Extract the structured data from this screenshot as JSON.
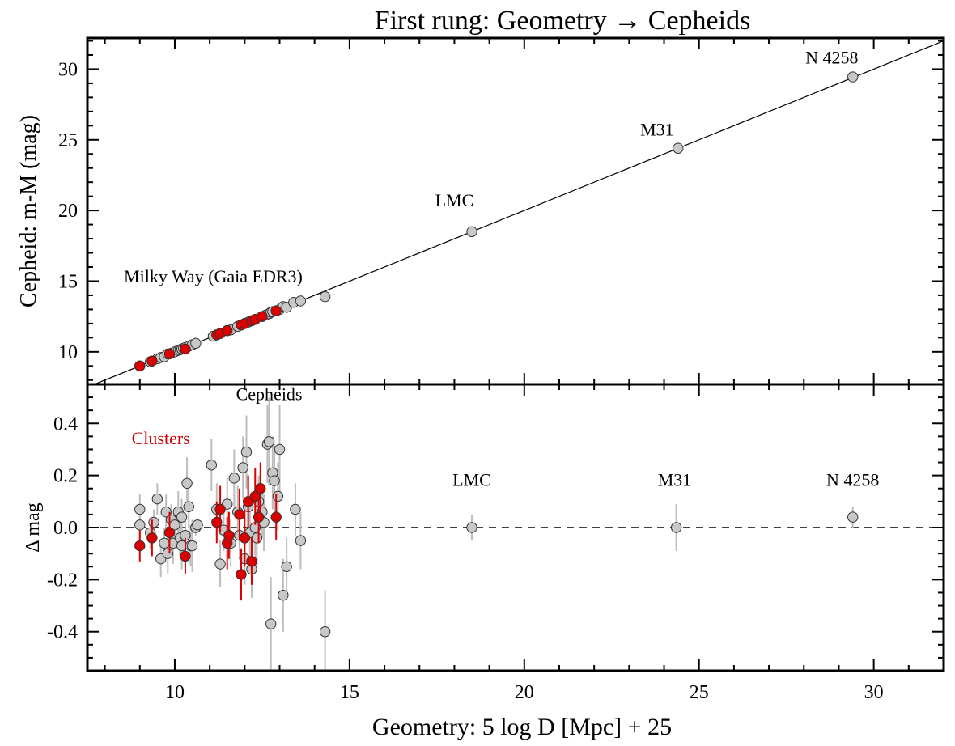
{
  "title": "First rung: Geometry → Cepheids",
  "xlabel": "Geometry: 5 log D [Mpc] + 25",
  "colors": {
    "cepheid_fill": "#c8c8c8",
    "cluster_fill": "#dd0000",
    "errorbar_grey": "#bdbdbd",
    "errorbar_red": "#dd0000",
    "cluster_label": "#cc0000"
  },
  "chart_data": [
    {
      "type": "scatter",
      "panel": "top",
      "title": "First rung: Geometry → Cepheids",
      "xlabel": "",
      "ylabel": "Cepheid: m-M (mag)",
      "xlim": [
        7.5,
        32
      ],
      "ylim": [
        7.7,
        32.2
      ],
      "xticks": [
        10,
        15,
        20,
        25,
        30
      ],
      "yticks": [
        10,
        15,
        20,
        25,
        30
      ],
      "line": {
        "style": "solid",
        "points": [
          [
            7.5,
            7.5
          ],
          [
            32,
            32
          ]
        ]
      },
      "annotations": [
        {
          "text": "Milky Way (Gaia EDR3)",
          "x": 11.1,
          "y": 14.9
        },
        {
          "text": "LMC",
          "x": 18.0,
          "y": 20.3
        },
        {
          "text": "M31",
          "x": 23.8,
          "y": 25.3
        },
        {
          "text": "N 4258",
          "x": 28.8,
          "y": 30.4
        }
      ],
      "series": [
        {
          "name": "Cepheids",
          "points": [
            [
              9.0,
              9.0
            ],
            [
              9.3,
              9.3
            ],
            [
              9.5,
              9.5
            ],
            [
              9.6,
              9.6
            ],
            [
              9.7,
              9.65
            ],
            [
              9.8,
              9.85
            ],
            [
              9.9,
              9.9
            ],
            [
              10.0,
              10.0
            ],
            [
              10.1,
              10.1
            ],
            [
              10.15,
              10.15
            ],
            [
              10.2,
              10.2
            ],
            [
              10.25,
              10.25
            ],
            [
              10.3,
              10.3
            ],
            [
              10.4,
              10.4
            ],
            [
              10.5,
              10.5
            ],
            [
              10.6,
              10.6
            ],
            [
              11.1,
              11.1
            ],
            [
              11.3,
              11.3
            ],
            [
              11.5,
              11.5
            ],
            [
              11.6,
              11.55
            ],
            [
              11.8,
              11.8
            ],
            [
              11.9,
              11.9
            ],
            [
              12.0,
              12.0
            ],
            [
              12.1,
              12.1
            ],
            [
              12.2,
              12.2
            ],
            [
              12.3,
              12.3
            ],
            [
              12.5,
              12.5
            ],
            [
              12.6,
              12.6
            ],
            [
              12.7,
              12.7
            ],
            [
              12.75,
              12.8
            ],
            [
              12.8,
              12.85
            ],
            [
              12.9,
              12.9
            ],
            [
              13.0,
              13.0
            ],
            [
              13.1,
              13.2
            ],
            [
              13.2,
              13.15
            ],
            [
              13.4,
              13.5
            ],
            [
              13.6,
              13.6
            ],
            [
              14.3,
              13.9
            ],
            [
              18.5,
              18.5
            ],
            [
              24.4,
              24.4
            ],
            [
              29.4,
              29.45
            ]
          ]
        },
        {
          "name": "Clusters",
          "points": [
            [
              9.0,
              9.0
            ],
            [
              9.35,
              9.35
            ],
            [
              9.85,
              9.85
            ],
            [
              10.3,
              10.2
            ],
            [
              11.2,
              11.2
            ],
            [
              11.3,
              11.3
            ],
            [
              11.5,
              11.5
            ],
            [
              11.9,
              11.9
            ],
            [
              12.0,
              12.0
            ],
            [
              12.2,
              12.2
            ],
            [
              12.3,
              12.3
            ],
            [
              12.5,
              12.5
            ],
            [
              12.9,
              12.9
            ]
          ]
        }
      ]
    },
    {
      "type": "scatter",
      "panel": "bottom",
      "xlabel": "Geometry: 5 log D [Mpc] + 25",
      "ylabel": "Δ mag",
      "xlim": [
        7.5,
        32
      ],
      "ylim": [
        -0.55,
        0.55
      ],
      "xticks": [
        10,
        15,
        20,
        25,
        30
      ],
      "yticks": [
        -0.4,
        -0.2,
        0.0,
        0.2,
        0.4
      ],
      "ytick_labels": [
        "-0.4",
        "-0.2",
        "0.0",
        "0.2",
        "0.4"
      ],
      "xtick_labels": [
        "10",
        "15",
        "20",
        "25",
        "30"
      ],
      "reference_line": {
        "y": 0.0,
        "style": "dashed"
      },
      "annotations": [
        {
          "text": "Cepheids",
          "x": 12.7,
          "y": 0.49,
          "color": "black"
        },
        {
          "text": "Clusters",
          "x": 9.6,
          "y": 0.32,
          "color": "red"
        },
        {
          "text": "LMC",
          "x": 18.5,
          "y": 0.16,
          "color": "black"
        },
        {
          "text": "M31",
          "x": 24.3,
          "y": 0.16,
          "color": "black"
        },
        {
          "text": "N 4258",
          "x": 29.4,
          "y": 0.16,
          "color": "black"
        }
      ],
      "series": [
        {
          "name": "Cepheids",
          "points": [
            {
              "x": 9.0,
              "y": 0.07,
              "err": 0.06
            },
            {
              "x": 9.0,
              "y": 0.01,
              "err": 0.05
            },
            {
              "x": 9.3,
              "y": -0.02,
              "err": 0.06
            },
            {
              "x": 9.4,
              "y": 0.02,
              "err": 0.05
            },
            {
              "x": 9.5,
              "y": 0.11,
              "err": 0.06
            },
            {
              "x": 9.6,
              "y": -0.12,
              "err": 0.07
            },
            {
              "x": 9.7,
              "y": -0.06,
              "err": 0.06
            },
            {
              "x": 9.75,
              "y": 0.06,
              "err": 0.07
            },
            {
              "x": 9.8,
              "y": -0.1,
              "err": 0.08
            },
            {
              "x": 9.9,
              "y": 0.03,
              "err": 0.06
            },
            {
              "x": 9.95,
              "y": -0.06,
              "err": 0.08
            },
            {
              "x": 10.0,
              "y": 0.01,
              "err": 0.06
            },
            {
              "x": 10.1,
              "y": 0.06,
              "err": 0.08
            },
            {
              "x": 10.15,
              "y": -0.04,
              "err": 0.07
            },
            {
              "x": 10.2,
              "y": 0.04,
              "err": 0.07
            },
            {
              "x": 10.2,
              "y": -0.07,
              "err": 0.09
            },
            {
              "x": 10.3,
              "y": -0.03,
              "err": 0.08
            },
            {
              "x": 10.35,
              "y": 0.17,
              "err": 0.1
            },
            {
              "x": 10.4,
              "y": 0.08,
              "err": 0.08
            },
            {
              "x": 10.45,
              "y": -0.07,
              "err": 0.08
            },
            {
              "x": 10.5,
              "y": -0.07,
              "err": 0.1
            },
            {
              "x": 10.6,
              "y": 0.0,
              "err": 0.03
            },
            {
              "x": 10.65,
              "y": 0.01,
              "err": 0.02
            },
            {
              "x": 11.05,
              "y": 0.24,
              "err": 0.1
            },
            {
              "x": 11.2,
              "y": 0.07,
              "err": 0.1
            },
            {
              "x": 11.3,
              "y": -0.14,
              "err": 0.09
            },
            {
              "x": 11.4,
              "y": -0.01,
              "err": 0.08
            },
            {
              "x": 11.5,
              "y": 0.09,
              "err": 0.1
            },
            {
              "x": 11.6,
              "y": -0.06,
              "err": 0.09
            },
            {
              "x": 11.7,
              "y": 0.19,
              "err": 0.11
            },
            {
              "x": 11.8,
              "y": 0.06,
              "err": 0.1
            },
            {
              "x": 11.85,
              "y": -0.03,
              "err": 0.09
            },
            {
              "x": 11.95,
              "y": 0.23,
              "err": 0.12
            },
            {
              "x": 12.0,
              "y": -0.12,
              "err": 0.1
            },
            {
              "x": 12.05,
              "y": 0.29,
              "err": 0.14
            },
            {
              "x": 12.1,
              "y": 0.08,
              "err": 0.12
            },
            {
              "x": 12.15,
              "y": -0.02,
              "err": 0.1
            },
            {
              "x": 12.2,
              "y": -0.16,
              "err": 0.11
            },
            {
              "x": 12.3,
              "y": 0.0,
              "err": 0.12
            },
            {
              "x": 12.35,
              "y": -0.04,
              "err": 0.11
            },
            {
              "x": 12.4,
              "y": 0.1,
              "err": 0.1
            },
            {
              "x": 12.5,
              "y": 0.06,
              "err": 0.1
            },
            {
              "x": 12.55,
              "y": 0.02,
              "err": 0.11
            },
            {
              "x": 12.65,
              "y": 0.32,
              "err": 0.15
            },
            {
              "x": 12.7,
              "y": 0.33,
              "err": 0.17
            },
            {
              "x": 12.75,
              "y": -0.37,
              "err": 0.18
            },
            {
              "x": 12.8,
              "y": 0.21,
              "err": 0.14
            },
            {
              "x": 12.85,
              "y": 0.18,
              "err": 0.14
            },
            {
              "x": 12.95,
              "y": 0.12,
              "err": 0.13
            },
            {
              "x": 13.0,
              "y": 0.3,
              "err": 0.17
            },
            {
              "x": 13.1,
              "y": -0.26,
              "err": 0.14
            },
            {
              "x": 13.2,
              "y": -0.15,
              "err": 0.11
            },
            {
              "x": 13.45,
              "y": 0.07,
              "err": 0.1
            },
            {
              "x": 13.6,
              "y": -0.05,
              "err": 0.11
            },
            {
              "x": 14.3,
              "y": -0.4,
              "err": 0.16
            },
            {
              "x": 18.5,
              "y": 0.0,
              "err": 0.05
            },
            {
              "x": 24.35,
              "y": 0.0,
              "err": 0.09
            },
            {
              "x": 29.4,
              "y": 0.04,
              "err": 0.04
            }
          ]
        },
        {
          "name": "Clusters",
          "points": [
            {
              "x": 9.0,
              "y": -0.07,
              "err": 0.06
            },
            {
              "x": 9.35,
              "y": -0.04,
              "err": 0.07
            },
            {
              "x": 9.85,
              "y": -0.02,
              "err": 0.08
            },
            {
              "x": 10.3,
              "y": -0.11,
              "err": 0.07
            },
            {
              "x": 11.2,
              "y": 0.02,
              "err": 0.08
            },
            {
              "x": 11.3,
              "y": 0.07,
              "err": 0.09
            },
            {
              "x": 11.5,
              "y": -0.06,
              "err": 0.1
            },
            {
              "x": 11.55,
              "y": -0.03,
              "err": 0.09
            },
            {
              "x": 11.85,
              "y": 0.05,
              "err": 0.1
            },
            {
              "x": 11.9,
              "y": -0.18,
              "err": 0.1
            },
            {
              "x": 12.0,
              "y": -0.04,
              "err": 0.11
            },
            {
              "x": 12.1,
              "y": 0.1,
              "err": 0.1
            },
            {
              "x": 12.2,
              "y": -0.13,
              "err": 0.09
            },
            {
              "x": 12.3,
              "y": 0.12,
              "err": 0.11
            },
            {
              "x": 12.4,
              "y": 0.04,
              "err": 0.1
            },
            {
              "x": 12.45,
              "y": 0.15,
              "err": 0.1
            },
            {
              "x": 12.9,
              "y": 0.04,
              "err": 0.09
            }
          ]
        }
      ]
    }
  ]
}
